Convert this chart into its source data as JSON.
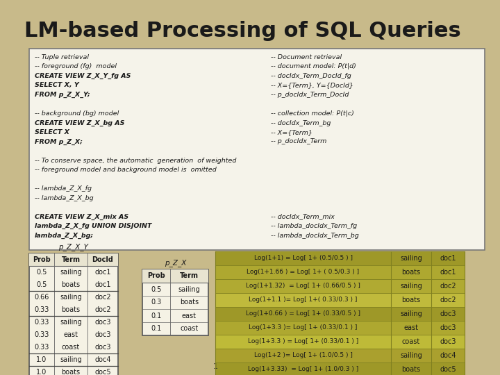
{
  "title": "LM-based Processing of SQL Queries",
  "slide_bg": "#c8ba8a",
  "title_color": "#1a1a1a",
  "box_bg": "#f5f3ea",
  "box_border": "#888888",
  "code_lines_left": [
    "-- Tuple retrieval",
    "-- foreground (fg)  model",
    "CREATE VIEW Z_X_Y_fg AS",
    "SELECT X, Y",
    "FROM p_Z_X_Y;",
    "",
    "-- background (bg) model",
    "CREATE VIEW Z_X_bg AS",
    "SELECT X",
    "FROM p_Z_X;",
    "",
    "-- To conserve space, the automatic  generation  of weighted",
    "-- foreground model and background model is  omitted",
    "",
    "-- lambda_Z_X_fg",
    "-- lambda_Z_X_bg",
    "",
    "CREATE VIEW Z_X_mix AS",
    "lambda_Z_X_fg UNION DISJOINT",
    "lambda_Z_X_bg;"
  ],
  "code_lines_right": [
    "-- Document retrieval",
    "-- document model: P(t|d)",
    "-- docIdx_Term_DocId_fg",
    "-- X={Term}, Y={DocId}",
    "-- p_docIdx_Term_DocId",
    "",
    "-- collection model: P(t|c)",
    "-- docIdx_Term_bg",
    "-- X={Term}",
    "-- p_docIdx_Term",
    "",
    "",
    "",
    "",
    "",
    "",
    "",
    "-- docIdx_Term_mix",
    "-- lambda_docIdx_Term_fg",
    "-- lambda_docIdx_Term_bg"
  ],
  "pZXY_headers": [
    "Prob",
    "Term",
    "DocId"
  ],
  "pZXY_rows": [
    [
      "0.5",
      "sailing",
      "doc1"
    ],
    [
      "0.5",
      "boats",
      "doc1"
    ],
    [
      "0.66",
      "sailing",
      "doc2"
    ],
    [
      "0.33",
      "boats",
      "doc2"
    ],
    [
      "0.33",
      "sailing",
      "doc3"
    ],
    [
      "0.33",
      "east",
      "doc3"
    ],
    [
      "0.33",
      "coast",
      "doc3"
    ],
    [
      "1.0",
      "sailing",
      "doc4"
    ],
    [
      "1.0",
      "boats",
      "doc5"
    ]
  ],
  "pZX_headers": [
    "Prob",
    "Term"
  ],
  "pZX_rows": [
    [
      "0.5",
      "sailing"
    ],
    [
      "0.3",
      "boats"
    ],
    [
      "0.1",
      "east"
    ],
    [
      "0.1",
      "coast"
    ]
  ],
  "log_rows": [
    [
      "Log(1+1) = Log[ 1+ (0.5/0.5 ) ]",
      "sailing",
      "doc1"
    ],
    [
      "Log(1+1.66 ) = Log[ 1+ ( 0.5/0.3 ) ]",
      "boats",
      "doc1"
    ],
    [
      "Log(1+1.32)  = Log[ 1+ (0.66/0.5 ) ]",
      "sailing",
      "doc2"
    ],
    [
      "Log(1+1.1 )= Log[ 1+( 0.33/0.3 ) ]",
      "boats",
      "doc2"
    ],
    [
      "Log(1+0.66 ) = Log[ 1+ (0.33/0.5 ) ]",
      "sailing",
      "doc3"
    ],
    [
      "Log(1+3.3 )= Log[ 1+ (0.33/0.1 ) ]",
      "east",
      "doc3"
    ],
    [
      "Log(1+3.3 ) = Log[ 1+ (0.33/0.1 ) ]",
      "coast",
      "doc3"
    ],
    [
      "Log(1+2 )= Log[ 1+ (1.0/0.5 ) ]",
      "sailing",
      "doc4"
    ],
    [
      "Log(1+3.33)  = Log[ 1+ (1.0/0.3 ) ]",
      "boats",
      "doc5"
    ]
  ]
}
